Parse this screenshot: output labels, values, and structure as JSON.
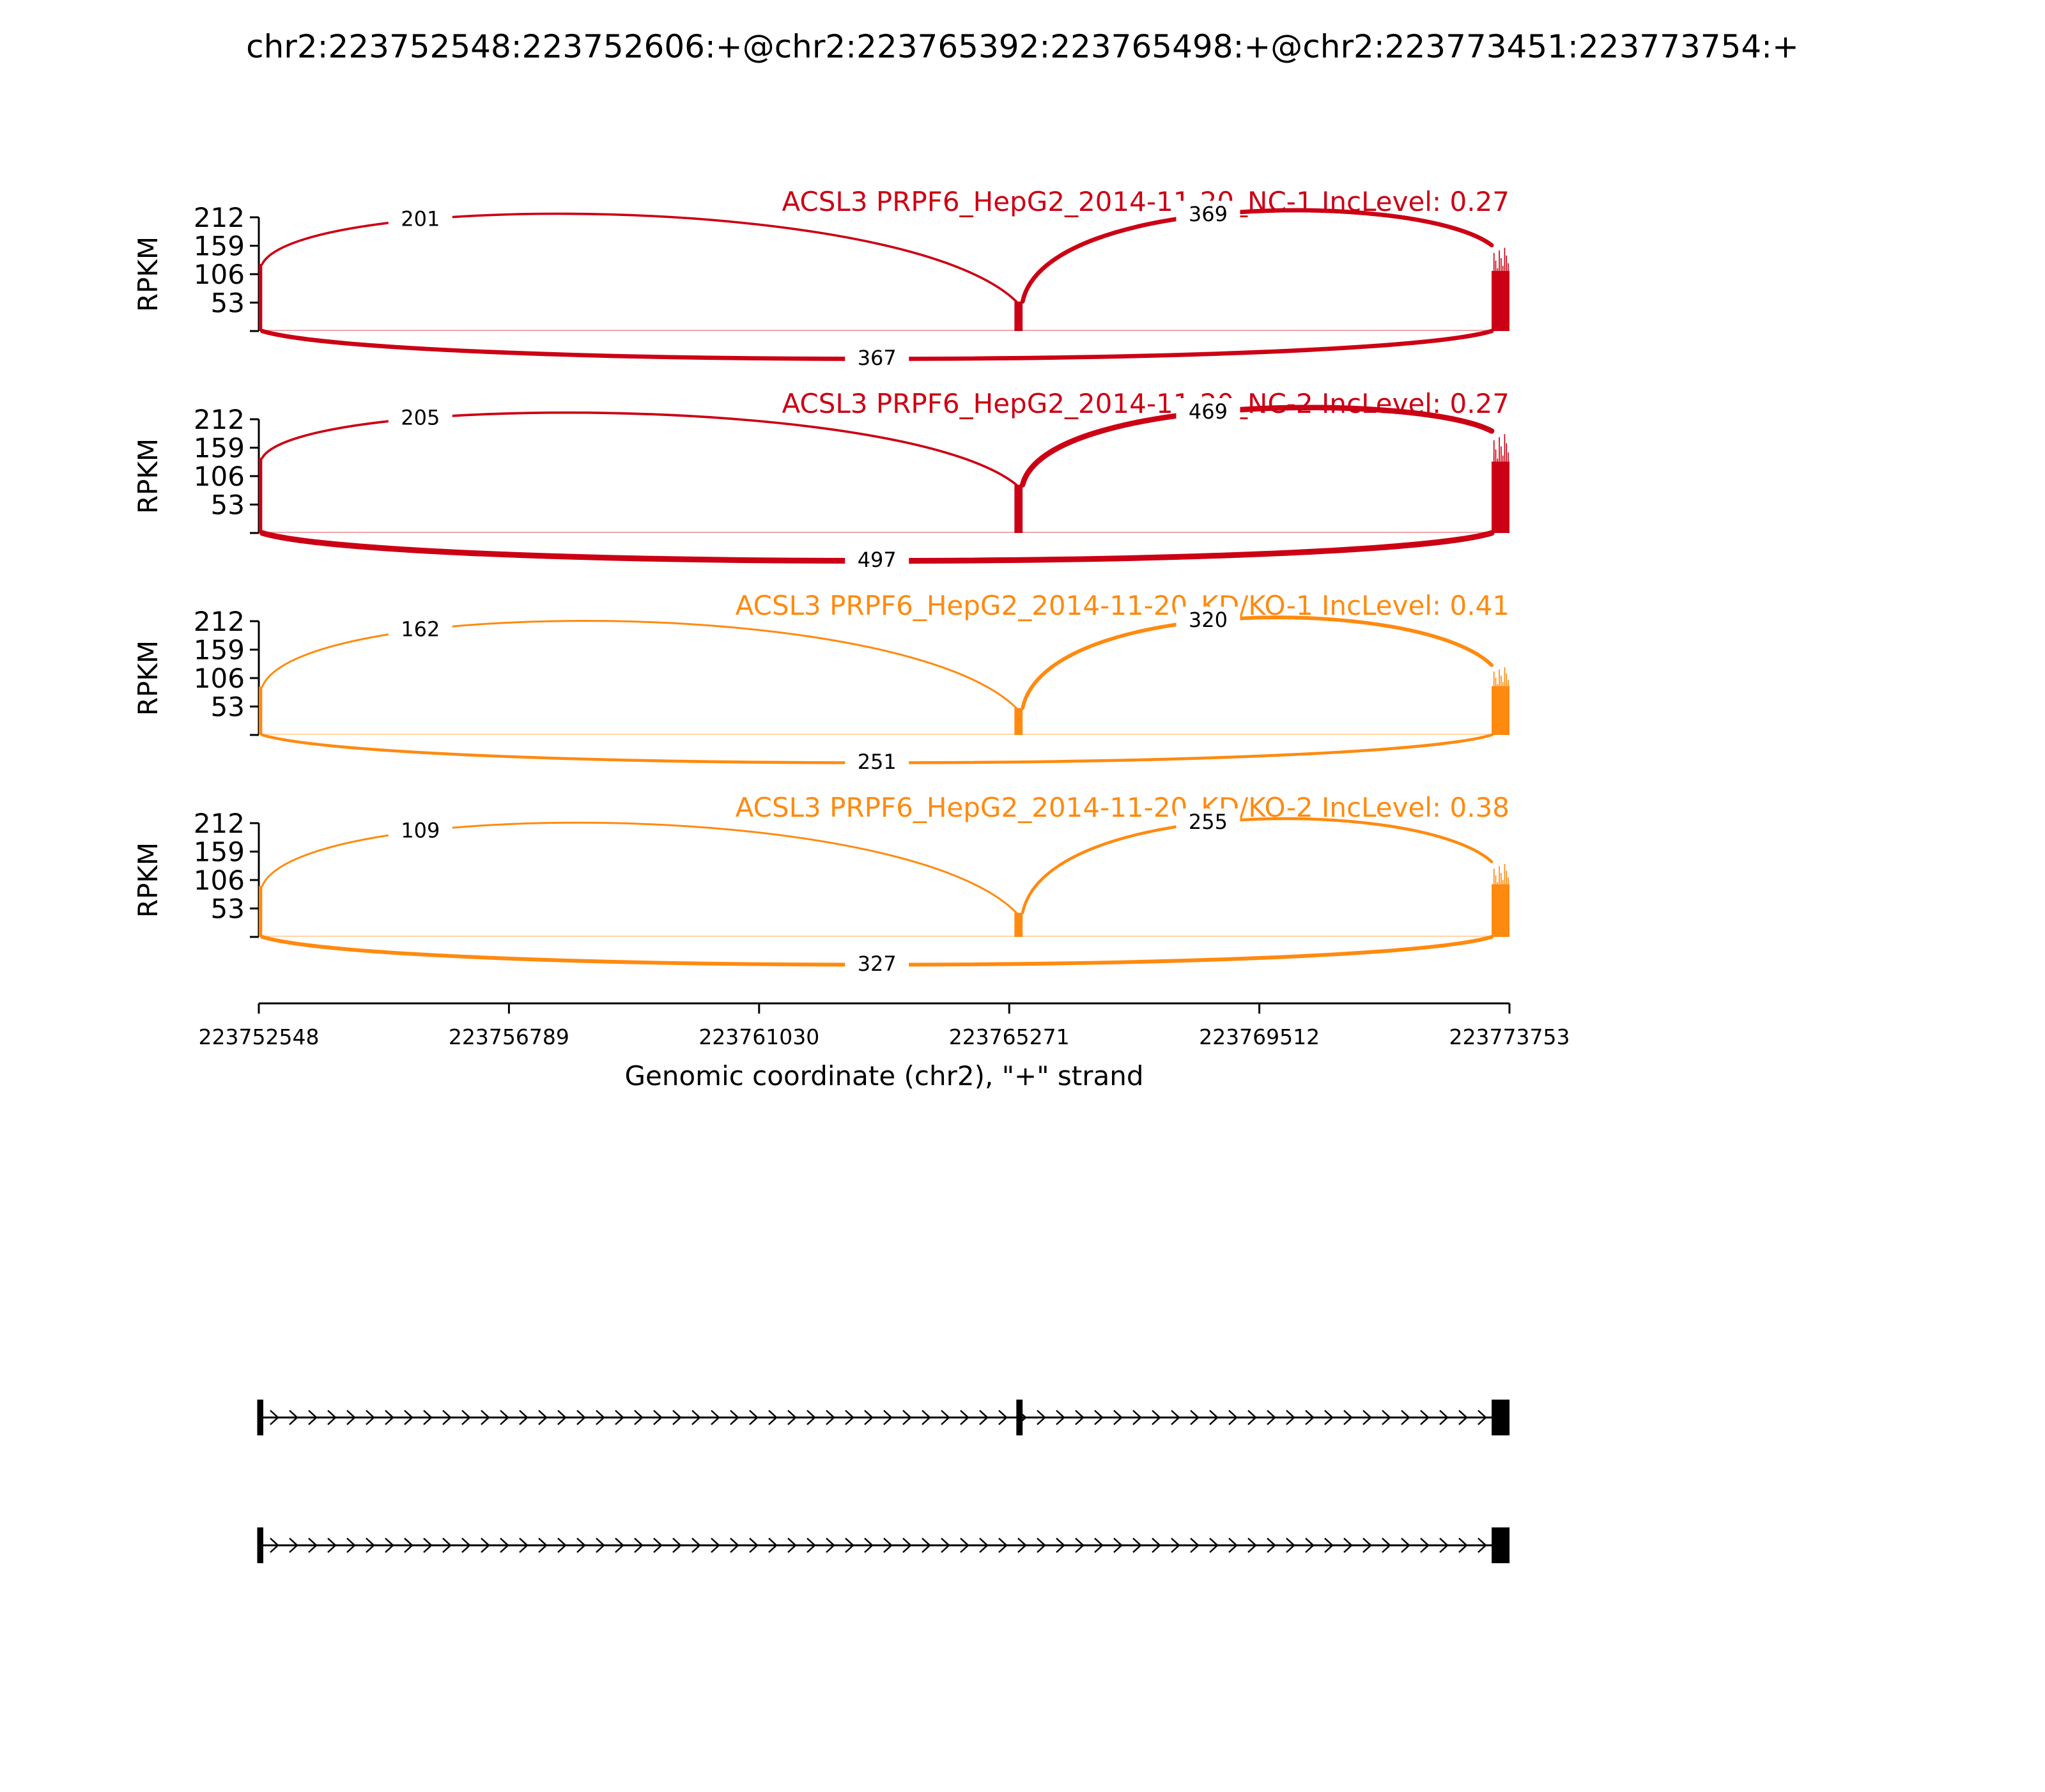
{
  "chart_data": {
    "type": "sashimi",
    "title": "chr2:223752548:223752606:+@chr2:223765392:223765498:+@chr2:223773451:223773754:+",
    "xlabel": "Genomic coordinate (chr2), \"+\" strand",
    "ylabel": "RPKM",
    "xlim": [
      223752548,
      223773753
    ],
    "x_ticks": [
      223752548,
      223756789,
      223761030,
      223765271,
      223769512,
      223773753
    ],
    "ylim": [
      0,
      212
    ],
    "y_ticks": [
      53,
      106,
      159,
      212
    ],
    "exons": [
      [
        223752548,
        223752606
      ],
      [
        223765392,
        223765498
      ],
      [
        223773451,
        223773754
      ]
    ],
    "colors": {
      "NC": "#cc0014",
      "KD": "#ff8a0f"
    },
    "panels": [
      {
        "label": "ACSL3 PRPF6_HepG2_2014-11-20_NC-1 IncLevel: 0.27",
        "group": "NC",
        "junctions": [
          {
            "from": 223752606,
            "to": 223765392,
            "count": "201",
            "side": "above"
          },
          {
            "from": 223765498,
            "to": 223773451,
            "count": "369",
            "side": "above"
          },
          {
            "from": 223752606,
            "to": 223773451,
            "count": "367",
            "side": "below"
          }
        ],
        "coverage": {
          "exon1": 125,
          "exon2": 55,
          "exon3": 160
        }
      },
      {
        "label": "ACSL3 PRPF6_HepG2_2014-11-20_NC-2 IncLevel: 0.27",
        "group": "NC",
        "junctions": [
          {
            "from": 223752606,
            "to": 223765392,
            "count": "205",
            "side": "above"
          },
          {
            "from": 223765498,
            "to": 223773451,
            "count": "469",
            "side": "above"
          },
          {
            "from": 223752606,
            "to": 223773451,
            "count": "497",
            "side": "below"
          }
        ],
        "coverage": {
          "exon1": 140,
          "exon2": 90,
          "exon3": 190
        }
      },
      {
        "label": "ACSL3 PRPF6_HepG2_2014-11-20_KD/KO-1 IncLevel: 0.41",
        "group": "KD",
        "junctions": [
          {
            "from": 223752606,
            "to": 223765392,
            "count": "162",
            "side": "above"
          },
          {
            "from": 223765498,
            "to": 223773451,
            "count": "320",
            "side": "above"
          },
          {
            "from": 223752606,
            "to": 223773451,
            "count": "251",
            "side": "below"
          }
        ],
        "coverage": {
          "exon1": 90,
          "exon2": 50,
          "exon3": 130
        }
      },
      {
        "label": "ACSL3 PRPF6_HepG2_2014-11-20_KD/KO-2 IncLevel: 0.38",
        "group": "KD",
        "junctions": [
          {
            "from": 223752606,
            "to": 223765392,
            "count": "109",
            "side": "above"
          },
          {
            "from": 223765498,
            "to": 223773451,
            "count": "255",
            "side": "above"
          },
          {
            "from": 223752606,
            "to": 223773451,
            "count": "327",
            "side": "below"
          }
        ],
        "coverage": {
          "exon1": 95,
          "exon2": 45,
          "exon3": 140
        }
      }
    ],
    "isoforms": [
      {
        "exons": [
          [
            223752548,
            223752606
          ],
          [
            223765392,
            223765498
          ],
          [
            223773451,
            223773754
          ]
        ]
      },
      {
        "exons": [
          [
            223752548,
            223752606
          ],
          [
            223773451,
            223773754
          ]
        ]
      }
    ]
  }
}
